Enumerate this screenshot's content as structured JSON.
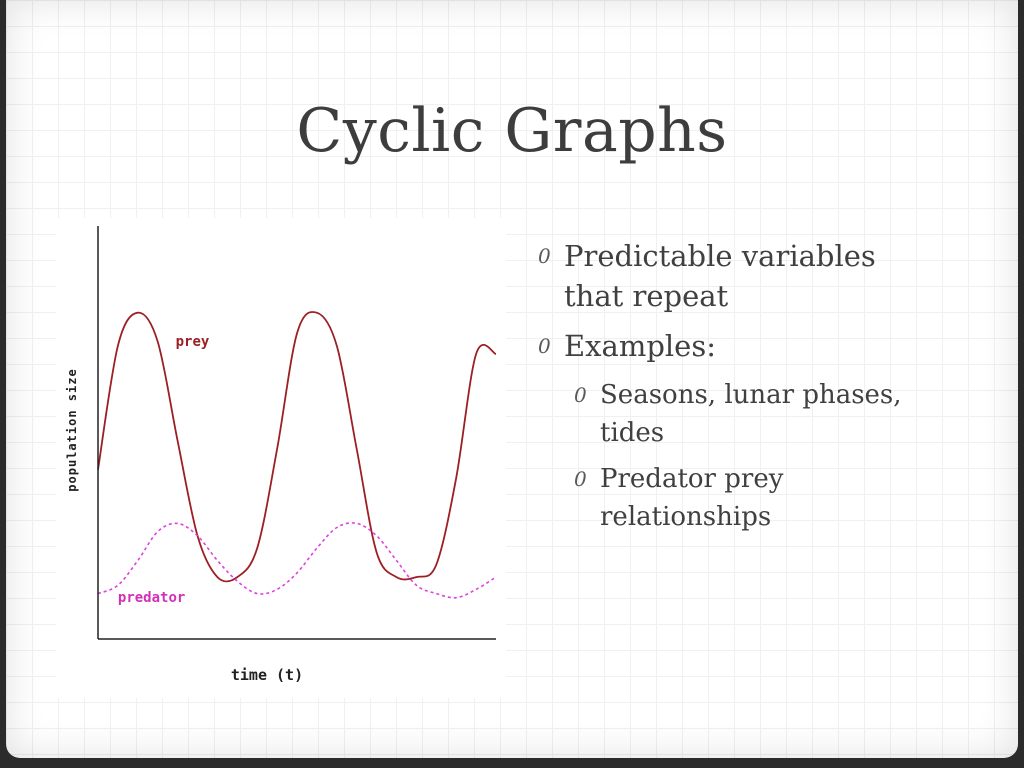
{
  "slide": {
    "title": "Cyclic Graphs",
    "bullet_marker": "0",
    "bullets": [
      {
        "text": "Predictable variables that repeat",
        "level": 1
      },
      {
        "text": "Examples:",
        "level": 1
      },
      {
        "text": "Seasons, lunar phases, tides",
        "level": 2
      },
      {
        "text": "Predator prey relationships",
        "level": 2
      }
    ]
  },
  "chart_data": {
    "type": "line",
    "xlabel": "time (t)",
    "ylabel": "population size",
    "xlim": [
      0,
      10
    ],
    "ylim": [
      0,
      10
    ],
    "grid": false,
    "x": [
      0,
      0.5,
      1,
      1.5,
      2,
      2.5,
      3,
      3.5,
      4,
      4.5,
      5,
      5.5,
      6,
      6.5,
      7,
      7.5,
      8,
      8.5,
      9,
      9.5,
      10
    ],
    "series": [
      {
        "name": "prey",
        "color": "#9c1f24",
        "style": "solid",
        "values": [
          4.1,
          7.1,
          7.9,
          7.2,
          4.8,
          2.5,
          1.5,
          1.5,
          2.2,
          4.6,
          7.4,
          7.9,
          7.1,
          4.6,
          2.1,
          1.5,
          1.5,
          1.8,
          3.9,
          6.9,
          6.9
        ]
      },
      {
        "name": "predator",
        "color": "#e040e0",
        "style": "dashed",
        "values": [
          1.1,
          1.3,
          1.9,
          2.6,
          2.8,
          2.5,
          1.9,
          1.4,
          1.1,
          1.2,
          1.6,
          2.2,
          2.7,
          2.8,
          2.5,
          1.9,
          1.3,
          1.1,
          1.0,
          1.2,
          1.5
        ]
      }
    ]
  }
}
